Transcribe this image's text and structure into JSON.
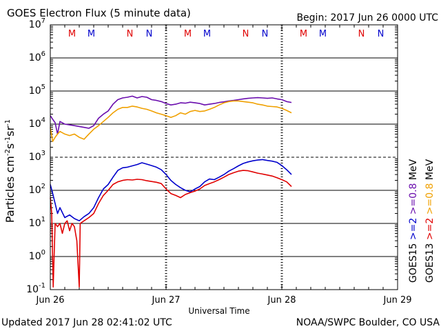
{
  "chart_data": {
    "type": "line",
    "title": "GOES Electron Flux (5 minute data)",
    "begin_label": "Begin: 2017 Jun 26 0000 UTC",
    "xlabel": "Universal Time",
    "ylabel": "Particles cm-2 s-1 sr-1",
    "ylabel_parts": {
      "base": "Particles cm",
      "e1": "-2",
      "s": "s",
      "e2": "-1",
      "sr": "sr",
      "e3": "-1"
    },
    "y_scale": "log",
    "ylim": [
      0.1,
      10000000
    ],
    "y_ticks": [
      {
        "base": "10",
        "exp": "-1",
        "value": 0.1
      },
      {
        "base": "10",
        "exp": "0",
        "value": 1
      },
      {
        "base": "10",
        "exp": "1",
        "value": 10
      },
      {
        "base": "10",
        "exp": "2",
        "value": 100
      },
      {
        "base": "10",
        "exp": "3",
        "value": 1000
      },
      {
        "base": "10",
        "exp": "4",
        "value": 10000
      },
      {
        "base": "10",
        "exp": "5",
        "value": 100000
      },
      {
        "base": "10",
        "exp": "6",
        "value": 1000000
      },
      {
        "base": "10",
        "exp": "7",
        "value": 10000000
      }
    ],
    "threshold_value": 1000,
    "x_unit": "hours since Jun 26 0000 UTC",
    "x_range": [
      0,
      72
    ],
    "x_ticks": [
      {
        "label": "Jun 26",
        "value": 0
      },
      {
        "label": "Jun 27",
        "value": 24
      },
      {
        "label": "Jun 28",
        "value": 48
      },
      {
        "label": "Jun 29",
        "value": 72
      }
    ],
    "markers": [
      {
        "letter": "M",
        "hour": 4.5,
        "color": "#e00000"
      },
      {
        "letter": "M",
        "hour": 8.5,
        "color": "#0000cc"
      },
      {
        "letter": "N",
        "hour": 16.5,
        "color": "#e00000"
      },
      {
        "letter": "N",
        "hour": 20.5,
        "color": "#0000cc"
      },
      {
        "letter": "M",
        "hour": 28.5,
        "color": "#e00000"
      },
      {
        "letter": "M",
        "hour": 32.5,
        "color": "#0000cc"
      },
      {
        "letter": "N",
        "hour": 40.5,
        "color": "#e00000"
      },
      {
        "letter": "N",
        "hour": 44.5,
        "color": "#0000cc"
      },
      {
        "letter": "M",
        "hour": 52.5,
        "color": "#e00000"
      },
      {
        "letter": "M",
        "hour": 56.5,
        "color": "#0000cc"
      },
      {
        "letter": "N",
        "hour": 64.5,
        "color": "#e00000"
      },
      {
        "letter": "N",
        "hour": 68.5,
        "color": "#0000cc"
      }
    ],
    "legend": {
      "column1": [
        {
          "text": "GOES13",
          "color": "#000000"
        },
        {
          "text": ">=2",
          "color": "#e00000"
        },
        {
          "text": ">=0.8",
          "color": "#f0a000"
        },
        {
          "text": "MeV",
          "color": "#000000"
        }
      ],
      "column2": [
        {
          "text": "GOES15",
          "color": "#000000"
        },
        {
          "text": ">=2",
          "color": "#0000cc"
        },
        {
          "text": ">=0.8",
          "color": "#6a0dad"
        },
        {
          "text": "MeV",
          "color": "#000000"
        }
      ]
    },
    "series": [
      {
        "name": "GOES15 >=0.8 MeV",
        "color": "#6a0dad",
        "points": [
          [
            0,
            18000
          ],
          [
            0.5,
            14000
          ],
          [
            1,
            11000
          ],
          [
            1.5,
            5000
          ],
          [
            2,
            12000
          ],
          [
            3,
            10000
          ],
          [
            4,
            9500
          ],
          [
            5,
            9000
          ],
          [
            6,
            8500
          ],
          [
            7,
            8000
          ],
          [
            8,
            7500
          ],
          [
            9,
            9000
          ],
          [
            10,
            15000
          ],
          [
            11,
            20000
          ],
          [
            12,
            25000
          ],
          [
            13,
            40000
          ],
          [
            14,
            55000
          ],
          [
            15,
            62000
          ],
          [
            16,
            65000
          ],
          [
            17,
            70000
          ],
          [
            18,
            62000
          ],
          [
            19,
            68000
          ],
          [
            20,
            65000
          ],
          [
            21,
            55000
          ],
          [
            22,
            52000
          ],
          [
            23,
            48000
          ],
          [
            24,
            42000
          ],
          [
            25,
            38000
          ],
          [
            26,
            40000
          ],
          [
            27,
            44000
          ],
          [
            28,
            43000
          ],
          [
            29,
            46000
          ],
          [
            30,
            44000
          ],
          [
            31,
            42000
          ],
          [
            32,
            38000
          ],
          [
            33,
            40000
          ],
          [
            34,
            42000
          ],
          [
            35,
            45000
          ],
          [
            36,
            47000
          ],
          [
            37,
            50000
          ],
          [
            38,
            52000
          ],
          [
            39,
            55000
          ],
          [
            40,
            58000
          ],
          [
            41,
            60000
          ],
          [
            42,
            62000
          ],
          [
            43,
            63000
          ],
          [
            44,
            62000
          ],
          [
            45,
            60000
          ],
          [
            46,
            62000
          ],
          [
            47,
            58000
          ],
          [
            48,
            55000
          ],
          [
            49,
            48000
          ],
          [
            50,
            45000
          ]
        ]
      },
      {
        "name": "GOES13 >=0.8 MeV",
        "color": "#f0a000",
        "points": [
          [
            0,
            8000
          ],
          [
            0.5,
            3000
          ],
          [
            1,
            4000
          ],
          [
            1.5,
            5000
          ],
          [
            2,
            6000
          ],
          [
            3,
            5000
          ],
          [
            4,
            4500
          ],
          [
            5,
            5000
          ],
          [
            6,
            4000
          ],
          [
            7,
            3500
          ],
          [
            8,
            5000
          ],
          [
            9,
            7000
          ],
          [
            10,
            9000
          ],
          [
            11,
            12000
          ],
          [
            12,
            16000
          ],
          [
            13,
            22000
          ],
          [
            14,
            28000
          ],
          [
            15,
            32000
          ],
          [
            16,
            32000
          ],
          [
            17,
            35000
          ],
          [
            18,
            33000
          ],
          [
            19,
            30000
          ],
          [
            20,
            28000
          ],
          [
            21,
            25000
          ],
          [
            22,
            22000
          ],
          [
            23,
            20000
          ],
          [
            24,
            18000
          ],
          [
            25,
            16000
          ],
          [
            26,
            18000
          ],
          [
            27,
            22000
          ],
          [
            28,
            20000
          ],
          [
            29,
            24000
          ],
          [
            30,
            26000
          ],
          [
            31,
            24000
          ],
          [
            32,
            25000
          ],
          [
            33,
            28000
          ],
          [
            34,
            32000
          ],
          [
            35,
            38000
          ],
          [
            36,
            44000
          ],
          [
            37,
            48000
          ],
          [
            38,
            50000
          ],
          [
            39,
            50000
          ],
          [
            40,
            48000
          ],
          [
            41,
            46000
          ],
          [
            42,
            44000
          ],
          [
            43,
            40000
          ],
          [
            44,
            38000
          ],
          [
            45,
            35000
          ],
          [
            46,
            34000
          ],
          [
            47,
            33000
          ],
          [
            48,
            30000
          ],
          [
            49,
            26000
          ],
          [
            50,
            22000
          ]
        ]
      },
      {
        "name": "GOES15 >=2 MeV",
        "color": "#0000cc",
        "points": [
          [
            0,
            150
          ],
          [
            0.5,
            80
          ],
          [
            1,
            40
          ],
          [
            1.5,
            20
          ],
          [
            2,
            30
          ],
          [
            3,
            15
          ],
          [
            4,
            18
          ],
          [
            5,
            14
          ],
          [
            6,
            12
          ],
          [
            7,
            16
          ],
          [
            8,
            20
          ],
          [
            9,
            30
          ],
          [
            10,
            60
          ],
          [
            11,
            110
          ],
          [
            12,
            150
          ],
          [
            13,
            250
          ],
          [
            14,
            400
          ],
          [
            15,
            480
          ],
          [
            16,
            500
          ],
          [
            17,
            550
          ],
          [
            18,
            600
          ],
          [
            19,
            680
          ],
          [
            20,
            620
          ],
          [
            21,
            560
          ],
          [
            22,
            500
          ],
          [
            23,
            420
          ],
          [
            24,
            300
          ],
          [
            25,
            200
          ],
          [
            26,
            150
          ],
          [
            27,
            120
          ],
          [
            28,
            100
          ],
          [
            29,
            90
          ],
          [
            30,
            110
          ],
          [
            31,
            130
          ],
          [
            32,
            180
          ],
          [
            33,
            220
          ],
          [
            34,
            210
          ],
          [
            35,
            250
          ],
          [
            36,
            300
          ],
          [
            37,
            380
          ],
          [
            38,
            450
          ],
          [
            39,
            550
          ],
          [
            40,
            650
          ],
          [
            41,
            720
          ],
          [
            42,
            780
          ],
          [
            43,
            820
          ],
          [
            44,
            850
          ],
          [
            45,
            800
          ],
          [
            46,
            760
          ],
          [
            47,
            700
          ],
          [
            48,
            560
          ],
          [
            49,
            420
          ],
          [
            50,
            300
          ]
        ]
      },
      {
        "name": "GOES13 >=2 MeV",
        "color": "#e00000",
        "points": [
          [
            0,
            60
          ],
          [
            0.3,
            20
          ],
          [
            0.6,
            0.12
          ],
          [
            1,
            10
          ],
          [
            1.5,
            8
          ],
          [
            2,
            10
          ],
          [
            2.5,
            5
          ],
          [
            3,
            10
          ],
          [
            3.5,
            12
          ],
          [
            4,
            6
          ],
          [
            4.5,
            10
          ],
          [
            5,
            8
          ],
          [
            5.5,
            3
          ],
          [
            6,
            0.12
          ],
          [
            6.2,
            10
          ],
          [
            7,
            12
          ],
          [
            8,
            15
          ],
          [
            9,
            20
          ],
          [
            10,
            40
          ],
          [
            11,
            70
          ],
          [
            12,
            100
          ],
          [
            13,
            150
          ],
          [
            14,
            180
          ],
          [
            15,
            200
          ],
          [
            16,
            210
          ],
          [
            17,
            205
          ],
          [
            18,
            215
          ],
          [
            19,
            210
          ],
          [
            20,
            195
          ],
          [
            21,
            185
          ],
          [
            22,
            175
          ],
          [
            23,
            160
          ],
          [
            24,
            110
          ],
          [
            25,
            80
          ],
          [
            26,
            70
          ],
          [
            27,
            60
          ],
          [
            28,
            75
          ],
          [
            29,
            85
          ],
          [
            30,
            95
          ],
          [
            31,
            110
          ],
          [
            32,
            140
          ],
          [
            33,
            160
          ],
          [
            34,
            180
          ],
          [
            35,
            210
          ],
          [
            36,
            250
          ],
          [
            37,
            300
          ],
          [
            38,
            340
          ],
          [
            39,
            380
          ],
          [
            40,
            400
          ],
          [
            41,
            390
          ],
          [
            42,
            360
          ],
          [
            43,
            330
          ],
          [
            44,
            310
          ],
          [
            45,
            290
          ],
          [
            46,
            270
          ],
          [
            47,
            240
          ],
          [
            48,
            210
          ],
          [
            49,
            180
          ],
          [
            50,
            130
          ]
        ]
      }
    ]
  },
  "footer": {
    "updated": "Updated 2017 Jun 28 02:41:02 UTC",
    "source": "NOAA/SWPC Boulder, CO USA"
  }
}
